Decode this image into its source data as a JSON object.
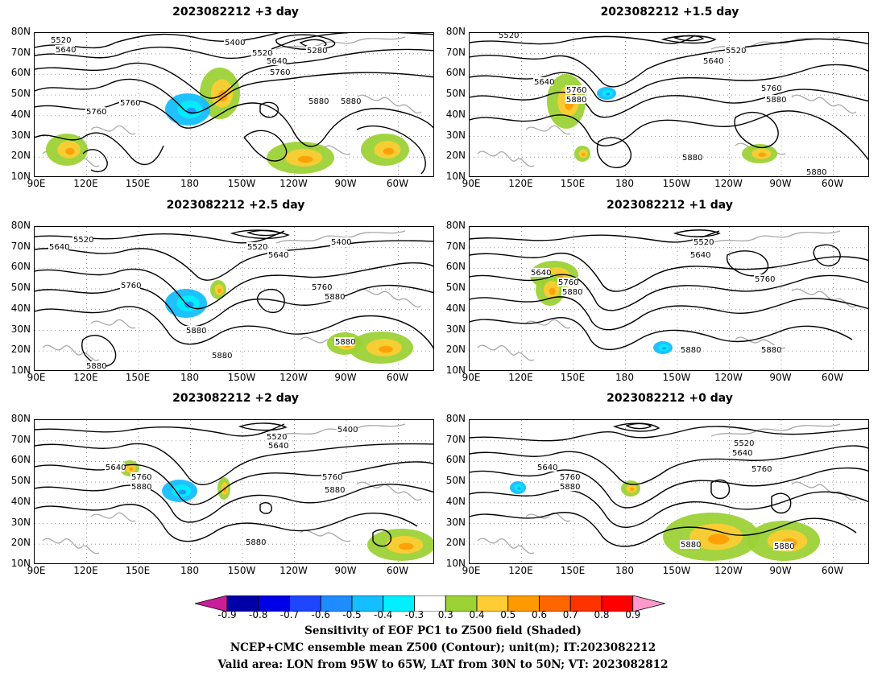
{
  "panels": [
    {
      "title": "2023082212 +3 day",
      "labels": [
        "5520",
        "5640",
        "5400",
        "5280",
        "5520",
        "5640",
        "5760",
        "5760",
        "5880",
        "5760",
        "5880"
      ],
      "shaded_clusters": [
        "positive",
        "negative",
        "positive",
        "positive",
        "positive"
      ]
    },
    {
      "title": "2023082212 +1.5 day",
      "labels": [
        "5520",
        "5520",
        "5640",
        "5640",
        "5760",
        "5880",
        "5760",
        "5880",
        "5880",
        "5880"
      ],
      "shaded_clusters": [
        "positive",
        "negative",
        "positive",
        "positive"
      ]
    },
    {
      "title": "2023082212 +2.5 day",
      "labels": [
        "5520",
        "5640",
        "5520",
        "5400",
        "5640",
        "5760",
        "5760",
        "5880",
        "5880",
        "5880",
        "5880",
        "5880"
      ],
      "shaded_clusters": [
        "negative",
        "positive",
        "positive",
        "positive"
      ]
    },
    {
      "title": "2023082212 +1 day",
      "labels": [
        "5520",
        "5640",
        "5640",
        "5760",
        "5880",
        "5760",
        "5880",
        "5880"
      ],
      "shaded_clusters": [
        "positive",
        "negative",
        "positive"
      ]
    },
    {
      "title": "2023082212 +2 day",
      "labels": [
        "5400",
        "5520",
        "5640",
        "5640",
        "5760",
        "5880",
        "5760",
        "5880",
        "5880"
      ],
      "shaded_clusters": [
        "negative",
        "positive",
        "positive",
        "positive"
      ]
    },
    {
      "title": "2023082212 +0 day",
      "labels": [
        "5520",
        "5640",
        "5640",
        "5760",
        "5880",
        "5760",
        "5880",
        "5880"
      ],
      "shaded_clusters": [
        "positive",
        "positive",
        "negative",
        "positive"
      ]
    }
  ],
  "axes": {
    "lat_labels": [
      "80N",
      "70N",
      "60N",
      "50N",
      "40N",
      "30N",
      "20N",
      "10N"
    ],
    "lon_labels": [
      "90E",
      "120E",
      "150E",
      "180",
      "150W",
      "120W",
      "90W",
      "60W"
    ]
  },
  "colorbar": {
    "ticks": [
      "-0.9",
      "-0.8",
      "-0.7",
      "-0.6",
      "-0.5",
      "-0.4",
      "-0.3",
      "0.3",
      "0.4",
      "0.5",
      "0.6",
      "0.7",
      "0.8",
      "0.9"
    ],
    "colors": [
      "#c81e9a",
      "#0000a8",
      "#0000e8",
      "#1e46ff",
      "#1e8cff",
      "#14beff",
      "#00f0ff",
      "#ffffff",
      "#9cd236",
      "#ffcc33",
      "#ff9900",
      "#ff6600",
      "#ff3300",
      "#ff0000",
      "#ff99cc"
    ]
  },
  "captions": {
    "line1": "Sensitivity of EOF PC1 to Z500 field (Shaded)",
    "line2": "NCEP+CMC ensemble mean Z500 (Contour); unit(m); IT:2023082212",
    "line3": "Valid area: LON from 95W to 65W, LAT from 30N to 50N; VT: 2023082812"
  }
}
